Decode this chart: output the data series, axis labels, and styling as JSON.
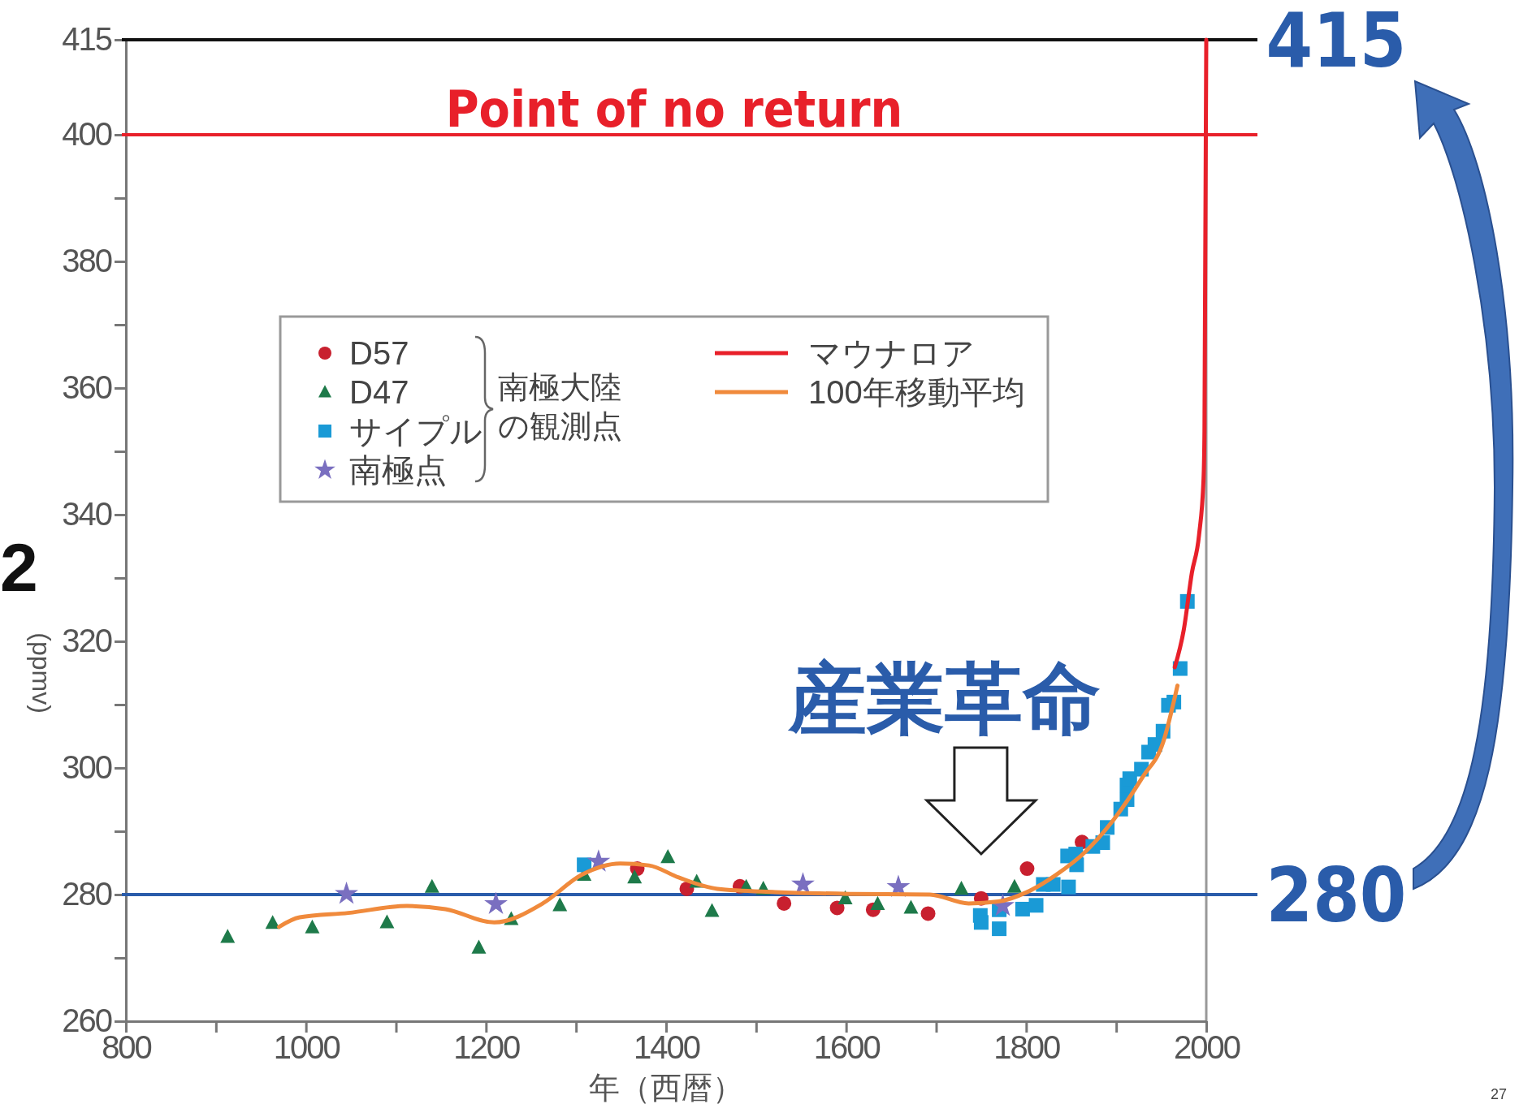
{
  "chart_data": {
    "type": "scatter",
    "xlabel": "年（西暦）",
    "ylabel": "(ppmv)",
    "xlim": [
      800,
      2000
    ],
    "ylim": [
      260,
      415
    ],
    "xticks": [
      800,
      {
        "value": 900,
        "label": null
      },
      1000,
      {
        "value": 1100,
        "label": null
      },
      1200,
      {
        "value": 1300,
        "label": null
      },
      1400,
      {
        "value": 1500,
        "label": null
      },
      1600,
      {
        "value": 1700,
        "label": null
      },
      1800,
      {
        "value": 1900,
        "label": null
      },
      2000
    ],
    "yticks": [
      260,
      {
        "value": 270,
        "label": null
      },
      280,
      {
        "value": 290,
        "label": null
      },
      300,
      {
        "value": 310,
        "label": null
      },
      320,
      {
        "value": 330,
        "label": null
      },
      340,
      {
        "value": 350,
        "label": null
      },
      360,
      {
        "value": 370,
        "label": null
      },
      380,
      {
        "value": 390,
        "label": null
      },
      400,
      415
    ],
    "legend": "top",
    "grid": false,
    "series": [
      {
        "name": "D57",
        "marker": "circle",
        "color": "#c8202f",
        "x": [
          1368,
          1423,
          1482,
          1531,
          1590,
          1630,
          1691,
          1750,
          1801,
          1862
        ],
        "values": [
          284.1,
          280.9,
          281.3,
          278.6,
          277.9,
          277.6,
          277,
          279.4,
          284.1,
          288.3
        ]
      },
      {
        "name": "D47",
        "marker": "triangle",
        "color": "#1e7a4a",
        "x": [
          913,
          963,
          1007,
          1090,
          1140,
          1192,
          1228,
          1282,
          1309,
          1365,
          1402,
          1434,
          1451,
          1489,
          1508,
          1599,
          1635,
          1672,
          1728,
          1787
        ],
        "values": [
          273.3,
          275.5,
          274.8,
          275.6,
          281.2,
          271.6,
          276.1,
          278.3,
          283.1,
          282.7,
          285.9,
          282,
          277.4,
          281.2,
          280.9,
          279.4,
          278.5,
          277.9,
          280.9,
          281.2
        ]
      },
      {
        "name": "サイプル",
        "marker": "square",
        "color": "#1a9ad6",
        "x": [
          1309,
          1749,
          1750,
          1770,
          1770,
          1796,
          1811,
          1819,
          1830,
          1847,
          1846,
          1856,
          1855,
          1874,
          1885,
          1890,
          1905,
          1912,
          1912,
          1915,
          1928,
          1936,
          1943,
          1952,
          1958,
          1964,
          1971,
          1979
        ],
        "values": [
          284.7,
          276.7,
          275.6,
          277.6,
          274.6,
          277.7,
          278.3,
          281.6,
          281.6,
          281.2,
          286.1,
          284.7,
          286.4,
          287.6,
          288.2,
          290.6,
          293.5,
          295,
          297.3,
          298.3,
          299.8,
          302.5,
          303.7,
          305.8,
          309.9,
          310.4,
          315.7,
          326.3
        ]
      },
      {
        "name": "南極点",
        "marker": "star",
        "color": "#7a6fc0",
        "x": [
          1045,
          1211,
          1325,
          1552,
          1658,
          1774
        ],
        "values": [
          280.1,
          278.5,
          285.2,
          281.6,
          281.2,
          278.2
        ]
      },
      {
        "name": "マウナロア",
        "type": "line",
        "marker": "none",
        "color": "#e8202a",
        "x": [
          1965,
          1975,
          1984,
          1992,
          1997,
          1998,
          2000
        ],
        "values": [
          315.9,
          321.8,
          330.8,
          336.8,
          345.7,
          353.1,
          415
        ]
      },
      {
        "name": "100年移動平均",
        "type": "line",
        "marker": "none",
        "color": "#f08a3c",
        "x": [
          970,
          993,
          1047,
          1112,
          1155,
          1209,
          1263,
          1306,
          1349,
          1381,
          1414,
          1457,
          1521,
          1607,
          1693,
          1736,
          1769,
          1801,
          1833,
          1866,
          1898,
          1930,
          1952,
          1968
        ],
        "values": [
          274.9,
          276.4,
          277.1,
          278.2,
          277.7,
          275.6,
          278.6,
          283.1,
          284.9,
          284.6,
          282.7,
          280.9,
          280.4,
          280.1,
          280,
          278.6,
          278.9,
          280.4,
          283.1,
          286.8,
          292,
          298.7,
          304,
          313
        ]
      }
    ],
    "ref_lines": [
      {
        "axis": "y",
        "value": 415,
        "label": "415",
        "color": "#111111"
      },
      {
        "axis": "y",
        "value": 400,
        "label": "Point of no return",
        "color": "#e8202a"
      },
      {
        "axis": "y",
        "value": 280,
        "label": "280",
        "color": "#2a5caa"
      }
    ],
    "annotations": [
      "南極大陸の観測点",
      {
        "text": "産業革命",
        "x": 1750,
        "y": 280
      },
      "2",
      "27"
    ]
  }
}
